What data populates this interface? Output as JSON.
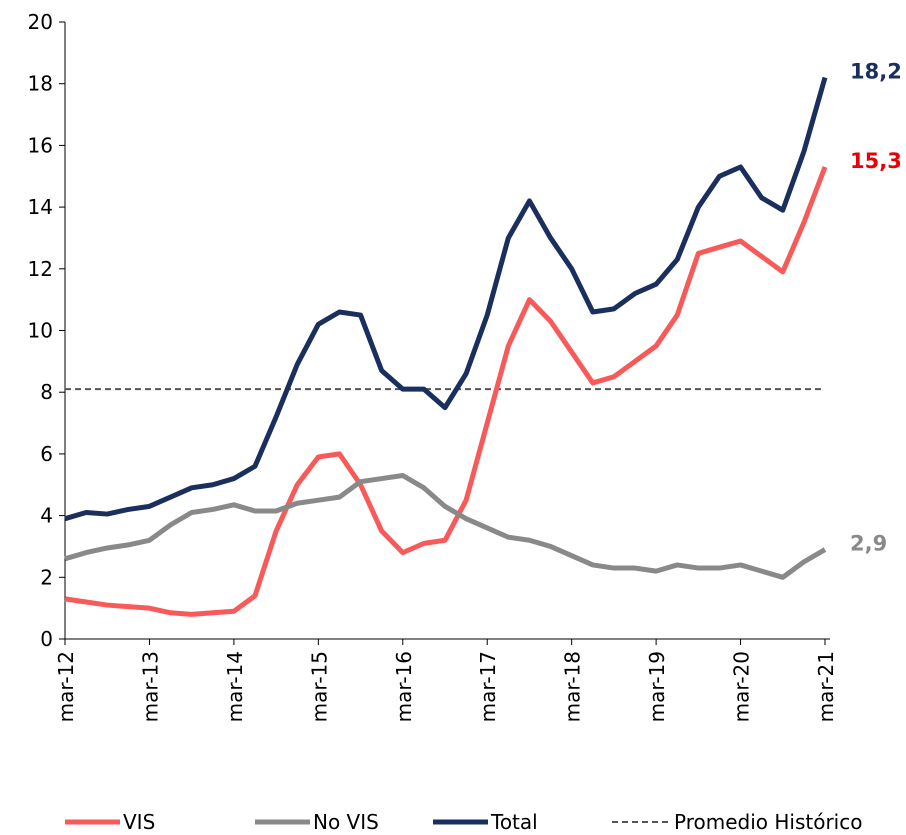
{
  "chart_data": {
    "type": "line",
    "categories": [
      "mar-12",
      null,
      null,
      null,
      "mar-13",
      null,
      null,
      null,
      "mar-14",
      null,
      null,
      null,
      "mar-15",
      null,
      null,
      null,
      "mar-16",
      null,
      null,
      null,
      "mar-17",
      null,
      null,
      null,
      "mar-18",
      null,
      null,
      null,
      "mar-19",
      null,
      null,
      null,
      "mar-20",
      null,
      null,
      null,
      "mar-21"
    ],
    "series": [
      {
        "name": "VIS",
        "color": "#f85a5a",
        "label_color": "#e8000b",
        "values": [
          1.3,
          1.2,
          1.1,
          1.05,
          1.0,
          0.85,
          0.8,
          0.85,
          0.9,
          1.4,
          3.5,
          5.0,
          5.9,
          6.0,
          5.0,
          3.5,
          2.8,
          3.1,
          3.2,
          4.5,
          7.0,
          9.5,
          11.0,
          10.3,
          9.3,
          8.3,
          8.5,
          9.0,
          9.5,
          10.5,
          12.5,
          12.7,
          12.9,
          12.4,
          11.9,
          13.5,
          15.3
        ],
        "value_labels": [
          null,
          null,
          null,
          null,
          null,
          null,
          null,
          null,
          null,
          null,
          null,
          null,
          null,
          null,
          null,
          null,
          null,
          null,
          null,
          null,
          null,
          null,
          null,
          null,
          null,
          null,
          null,
          null,
          null,
          null,
          null,
          null,
          null,
          null,
          null,
          null,
          "15,3"
        ]
      },
      {
        "name": "No VIS",
        "color": "#898989",
        "label_color": "#898989",
        "values": [
          2.6,
          2.8,
          2.95,
          3.05,
          3.2,
          3.7,
          4.1,
          4.2,
          4.35,
          4.15,
          4.15,
          4.4,
          4.5,
          4.6,
          5.1,
          5.2,
          5.3,
          4.9,
          4.3,
          3.9,
          3.6,
          3.3,
          3.2,
          3.0,
          2.7,
          2.4,
          2.3,
          2.3,
          2.2,
          2.4,
          2.3,
          2.3,
          2.4,
          2.2,
          2.0,
          2.5,
          2.9
        ],
        "value_labels": [
          null,
          null,
          null,
          null,
          null,
          null,
          null,
          null,
          null,
          null,
          null,
          null,
          null,
          null,
          null,
          null,
          null,
          null,
          null,
          null,
          null,
          null,
          null,
          null,
          null,
          null,
          null,
          null,
          null,
          null,
          null,
          null,
          null,
          null,
          null,
          null,
          "2,9"
        ]
      },
      {
        "name": "Total",
        "color": "#1b2f5e",
        "label_color": "#1b2f5e",
        "values": [
          3.9,
          4.1,
          4.05,
          4.2,
          4.3,
          4.6,
          4.9,
          5.0,
          5.2,
          5.6,
          7.2,
          8.9,
          10.2,
          10.6,
          10.5,
          8.7,
          8.1,
          8.1,
          7.5,
          8.6,
          10.5,
          13.0,
          14.2,
          13.0,
          12.0,
          10.6,
          10.7,
          11.2,
          11.5,
          12.3,
          14.0,
          15.0,
          15.3,
          14.3,
          13.9,
          15.8,
          18.2
        ],
        "value_labels": [
          null,
          null,
          null,
          null,
          null,
          null,
          null,
          null,
          null,
          null,
          null,
          null,
          null,
          null,
          null,
          null,
          null,
          null,
          null,
          null,
          null,
          null,
          null,
          null,
          null,
          null,
          null,
          null,
          null,
          null,
          null,
          null,
          null,
          null,
          null,
          null,
          "18,2"
        ]
      }
    ],
    "reference": {
      "name": "Promedio Histórico",
      "value": 8.1,
      "color": "#555555"
    },
    "ylim": [
      0,
      20
    ],
    "yticks": [
      0,
      2,
      4,
      6,
      8,
      10,
      12,
      14,
      16,
      18,
      20
    ],
    "legend": "bottom"
  }
}
